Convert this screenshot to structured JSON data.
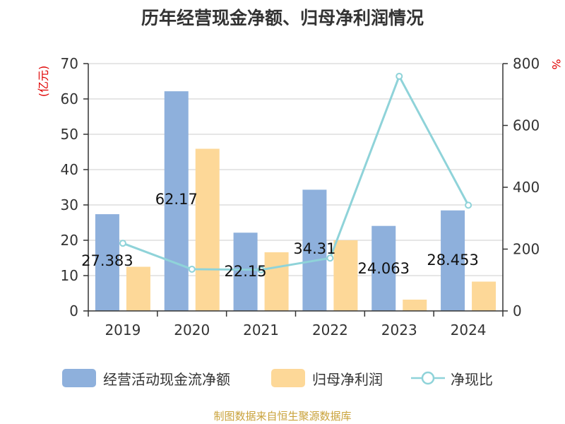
{
  "title": "历年经营现金净额、归母净利润情况",
  "source": "制图数据来自恒生聚源数据库",
  "colors": {
    "cash_flow": "#8eb0dc",
    "net_profit": "#fdd898",
    "ratio": "#8fd3d9",
    "left_unit": "#e00000",
    "right_unit": "#e00000",
    "source": "#c9a23a"
  },
  "chart_data": {
    "type": "bar",
    "categories": [
      "2019",
      "2020",
      "2021",
      "2022",
      "2023",
      "2024"
    ],
    "left_axis": {
      "label": "(亿元)",
      "ylim": [
        0,
        70
      ],
      "ticks": [
        0,
        10,
        20,
        30,
        40,
        50,
        60,
        70
      ]
    },
    "right_axis": {
      "label": "%",
      "ylim": [
        0,
        800
      ],
      "ticks": [
        0,
        200,
        400,
        600,
        800
      ]
    },
    "series": [
      {
        "name": "经营活动现金流净额",
        "type": "bar",
        "axis": "left",
        "values": [
          27.383,
          62.17,
          22.15,
          34.31,
          24.063,
          28.453
        ],
        "labels": [
          "27.383",
          "62.17",
          "22.15",
          "34.31",
          "24.063",
          "28.453"
        ]
      },
      {
        "name": "归母净利润",
        "type": "bar",
        "axis": "left",
        "values": [
          12.5,
          45.9,
          16.6,
          20.0,
          3.2,
          8.3
        ]
      },
      {
        "name": "净现比",
        "type": "line",
        "axis": "right",
        "values": [
          219,
          135,
          133,
          171,
          759,
          342
        ]
      }
    ],
    "grid": true,
    "legend_position": "bottom"
  }
}
